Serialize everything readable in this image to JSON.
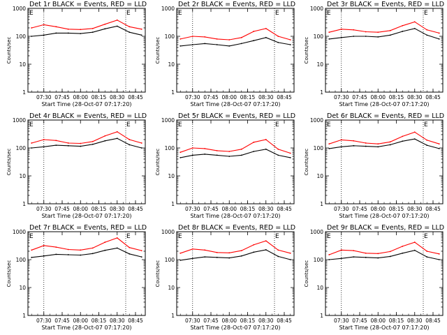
{
  "figure": {
    "xlabel": "Start Time (28-Oct-07 07:17:20)",
    "ylabel": "Counts/sec",
    "x_tick_labels": [
      "07:30",
      "07:45",
      "08:00",
      "08:15",
      "08:30",
      "08:45"
    ],
    "y_tick_labels": [
      "1",
      "10",
      "100",
      "1000"
    ],
    "edge_marker_left": "E",
    "edge_marker_right": "E",
    "colors": {
      "events": "#000000",
      "lld": "#ff0000",
      "axes": "#000000",
      "background": "#ffffff"
    }
  },
  "chart_data": [
    {
      "type": "line",
      "title": "Det 1r BLACK = Events, RED = LLD",
      "xlabel": "Start Time (28-Oct-07 07:17:20)",
      "ylabel": "Counts/sec",
      "ylim": [
        1,
        1000
      ],
      "yscale": "log",
      "x": [
        "07:20",
        "07:30",
        "07:40",
        "07:50",
        "08:00",
        "08:10",
        "08:20",
        "08:30",
        "08:40",
        "08:50"
      ],
      "series": [
        {
          "name": "Events",
          "color": "#000000",
          "values": [
            100,
            110,
            130,
            130,
            125,
            140,
            185,
            230,
            140,
            110
          ]
        },
        {
          "name": "LLD",
          "color": "#ff0000",
          "values": [
            200,
            260,
            220,
            180,
            175,
            190,
            270,
            380,
            220,
            180
          ]
        }
      ]
    },
    {
      "type": "line",
      "title": "Det 2r BLACK = Events, RED = LLD",
      "xlabel": "Start Time (28-Oct-07 07:17:20)",
      "ylabel": "Counts/sec",
      "ylim": [
        1,
        1000
      ],
      "yscale": "log",
      "x": [
        "07:20",
        "07:30",
        "07:40",
        "07:50",
        "08:00",
        "08:10",
        "08:20",
        "08:30",
        "08:40",
        "08:50"
      ],
      "series": [
        {
          "name": "Events",
          "color": "#000000",
          "values": [
            45,
            50,
            55,
            50,
            45,
            55,
            70,
            90,
            60,
            50
          ]
        },
        {
          "name": "LLD",
          "color": "#ff0000",
          "values": [
            80,
            100,
            95,
            80,
            75,
            90,
            150,
            190,
            100,
            75
          ]
        }
      ]
    },
    {
      "type": "line",
      "title": "Det 3r BLACK = Events, RED = LLD",
      "xlabel": "Start Time (28-Oct-07 07:17:20)",
      "ylabel": "Counts/sec",
      "ylim": [
        1,
        1000
      ],
      "yscale": "log",
      "x": [
        "07:20",
        "07:30",
        "07:40",
        "07:50",
        "08:00",
        "08:10",
        "08:20",
        "08:30",
        "08:40",
        "08:50"
      ],
      "series": [
        {
          "name": "Events",
          "color": "#000000",
          "values": [
            80,
            90,
            100,
            100,
            95,
            110,
            150,
            190,
            110,
            80
          ]
        },
        {
          "name": "LLD",
          "color": "#ff0000",
          "values": [
            140,
            180,
            170,
            145,
            140,
            160,
            240,
            330,
            170,
            130
          ]
        }
      ]
    },
    {
      "type": "line",
      "title": "Det 4r BLACK = Events, RED = LLD",
      "xlabel": "Start Time (28-Oct-07 07:17:20)",
      "ylabel": "Counts/sec",
      "ylim": [
        1,
        1000
      ],
      "yscale": "log",
      "x": [
        "07:20",
        "07:30",
        "07:40",
        "07:50",
        "08:00",
        "08:10",
        "08:20",
        "08:30",
        "08:40",
        "08:50"
      ],
      "series": [
        {
          "name": "Events",
          "color": "#000000",
          "values": [
            100,
            110,
            125,
            120,
            115,
            135,
            180,
            220,
            130,
            100
          ]
        },
        {
          "name": "LLD",
          "color": "#ff0000",
          "values": [
            150,
            200,
            185,
            150,
            145,
            170,
            270,
            380,
            200,
            150
          ]
        }
      ]
    },
    {
      "type": "line",
      "title": "Det 5r BLACK = Events, RED = LLD",
      "xlabel": "Start Time (28-Oct-07 07:17:20)",
      "ylabel": "Counts/sec",
      "ylim": [
        1,
        1000
      ],
      "yscale": "log",
      "x": [
        "07:20",
        "07:30",
        "07:40",
        "07:50",
        "08:00",
        "08:10",
        "08:20",
        "08:30",
        "08:40",
        "08:50"
      ],
      "series": [
        {
          "name": "Events",
          "color": "#000000",
          "values": [
            45,
            55,
            60,
            55,
            50,
            55,
            75,
            90,
            55,
            45
          ]
        },
        {
          "name": "LLD",
          "color": "#ff0000",
          "values": [
            70,
            100,
            95,
            80,
            75,
            90,
            160,
            200,
            90,
            65
          ]
        }
      ]
    },
    {
      "type": "line",
      "title": "Det 6r BLACK = Events, RED = LLD",
      "xlabel": "Start Time (28-Oct-07 07:17:20)",
      "ylabel": "Counts/sec",
      "ylim": [
        1,
        1000
      ],
      "yscale": "log",
      "x": [
        "07:20",
        "07:30",
        "07:40",
        "07:50",
        "08:00",
        "08:10",
        "08:20",
        "08:30",
        "08:40",
        "08:50"
      ],
      "series": [
        {
          "name": "Events",
          "color": "#000000",
          "values": [
            95,
            110,
            120,
            115,
            110,
            130,
            175,
            210,
            125,
            95
          ]
        },
        {
          "name": "LLD",
          "color": "#ff0000",
          "values": [
            140,
            195,
            180,
            150,
            140,
            165,
            260,
            370,
            190,
            140
          ]
        }
      ]
    },
    {
      "type": "line",
      "title": "Det 7r BLACK = Events, RED = LLD",
      "xlabel": "Start Time (28-Oct-07 07:17:20)",
      "ylabel": "Counts/sec",
      "ylim": [
        1,
        1000
      ],
      "yscale": "log",
      "x": [
        "07:20",
        "07:30",
        "07:40",
        "07:50",
        "08:00",
        "08:10",
        "08:20",
        "08:30",
        "08:40",
        "08:50"
      ],
      "series": [
        {
          "name": "Events",
          "color": "#000000",
          "values": [
            120,
            135,
            155,
            150,
            145,
            165,
            215,
            260,
            160,
            125
          ]
        },
        {
          "name": "LLD",
          "color": "#ff0000",
          "values": [
            220,
            320,
            280,
            230,
            220,
            260,
            420,
            600,
            270,
            210
          ]
        }
      ]
    },
    {
      "type": "line",
      "title": "Det 8r BLACK = Events, RED = LLD",
      "xlabel": "Start Time (28-Oct-07 07:17:20)",
      "ylabel": "Counts/sec",
      "ylim": [
        1,
        1000
      ],
      "yscale": "log",
      "x": [
        "07:20",
        "07:30",
        "07:40",
        "07:50",
        "08:00",
        "08:10",
        "08:20",
        "08:30",
        "08:40",
        "08:50"
      ],
      "series": [
        {
          "name": "Events",
          "color": "#000000",
          "values": [
            95,
            110,
            125,
            120,
            115,
            135,
            185,
            225,
            130,
            100
          ]
        },
        {
          "name": "LLD",
          "color": "#ff0000",
          "values": [
            170,
            240,
            220,
            180,
            175,
            210,
            340,
            470,
            220,
            170
          ]
        }
      ]
    },
    {
      "type": "line",
      "title": "Det 9r BLACK = Events, RED = LLD",
      "xlabel": "Start Time (28-Oct-07 07:17:20)",
      "ylabel": "Counts/sec",
      "ylim": [
        1,
        1000
      ],
      "yscale": "log",
      "x": [
        "07:20",
        "07:30",
        "07:40",
        "07:50",
        "08:00",
        "08:10",
        "08:20",
        "08:30",
        "08:40",
        "08:50"
      ],
      "series": [
        {
          "name": "Events",
          "color": "#000000",
          "values": [
            100,
            110,
            125,
            120,
            115,
            130,
            170,
            215,
            125,
            100
          ]
        },
        {
          "name": "LLD",
          "color": "#ff0000",
          "values": [
            150,
            220,
            210,
            170,
            165,
            195,
            300,
            420,
            200,
            160
          ]
        }
      ]
    }
  ]
}
